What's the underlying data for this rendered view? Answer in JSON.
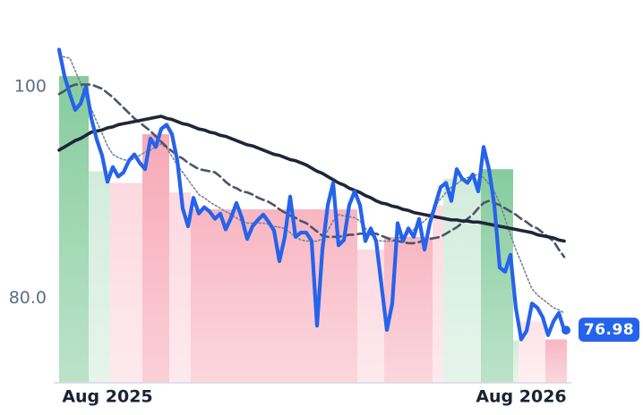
{
  "chart_data": {
    "type": "line",
    "categories": [
      null,
      null,
      null,
      null,
      null,
      null,
      null,
      null,
      null,
      "Aug 2025",
      null,
      null,
      null,
      null,
      null,
      null,
      null,
      null,
      null,
      null,
      null,
      null,
      null,
      null,
      null,
      null,
      null,
      null,
      null,
      null,
      null,
      null,
      null,
      null,
      null,
      null,
      null,
      null,
      null,
      null,
      null,
      null,
      null,
      null,
      null,
      null,
      null,
      null,
      null,
      null,
      null,
      null,
      null,
      null,
      null,
      null,
      null,
      null,
      null,
      null,
      null,
      null,
      null,
      null,
      null,
      null,
      null,
      null,
      null,
      null,
      null,
      null,
      null,
      null,
      null,
      null,
      null,
      null,
      null,
      null,
      null,
      null,
      null,
      null,
      null,
      null,
      "Aug 2026",
      null,
      null,
      null,
      null,
      null,
      null,
      null,
      null
    ],
    "ylim": [
      72,
      105
    ],
    "yticks": [
      100,
      {
        "value": 80,
        "label": "80.0"
      }
    ],
    "series": [
      {
        "color": "#2563eb",
        "style": "solid-thick",
        "values": [
          103.5,
          101.0,
          99.3,
          97.8,
          98.4,
          100.0,
          97.0,
          95.0,
          93.5,
          91.0,
          92.4,
          91.5,
          91.9,
          93.0,
          93.6,
          92.8,
          92.2,
          95.1,
          94.3,
          96.0,
          96.4,
          95.5,
          93.0,
          88.5,
          86.8,
          89.5,
          88.0,
          88.6,
          88.2,
          87.5,
          88.0,
          86.5,
          87.6,
          89.0,
          87.6,
          85.6,
          86.8,
          87.4,
          87.9,
          87.2,
          86.4,
          83.5,
          85.8,
          89.6,
          85.8,
          86.2,
          86.2,
          85.4,
          77.4,
          84.6,
          88.8,
          90.9,
          85.0,
          85.5,
          88.8,
          90.1,
          88.8,
          85.4,
          86.6,
          85.4,
          81.2,
          77.0,
          79.5,
          87.1,
          85.4,
          86.6,
          85.8,
          87.5,
          84.6,
          87.1,
          88.8,
          90.5,
          90.9,
          89.2,
          92.2,
          91.3,
          90.9,
          91.7,
          90.1,
          94.3,
          92.2,
          88.8,
          82.9,
          82.5,
          84.1,
          79.1,
          76.1,
          76.9,
          79.5,
          79.1,
          78.2,
          76.5,
          77.8,
          78.6,
          76.98
        ]
      },
      {
        "color": "#1e2638",
        "style": "solid",
        "values": [
          94.0,
          94.3,
          94.6,
          94.9,
          95.1,
          95.4,
          95.7,
          95.8,
          95.9,
          96.1,
          96.2,
          96.4,
          96.5,
          96.6,
          96.7,
          96.8,
          96.9,
          97.0,
          97.1,
          97.2,
          97.0,
          96.9,
          96.7,
          96.5,
          96.4,
          96.2,
          96.0,
          95.9,
          95.7,
          95.6,
          95.4,
          95.3,
          95.1,
          94.9,
          94.7,
          94.5,
          94.4,
          94.2,
          94.0,
          93.8,
          93.6,
          93.5,
          93.3,
          93.1,
          93.0,
          92.8,
          92.6,
          92.3,
          92.0,
          91.8,
          91.5,
          91.2,
          90.9,
          90.7,
          90.4,
          90.2,
          90.0,
          89.7,
          89.5,
          89.2,
          89.0,
          88.9,
          88.7,
          88.6,
          88.4,
          88.3,
          88.1,
          88.0,
          87.9,
          87.8,
          87.7,
          87.6,
          87.5,
          87.4,
          87.4,
          87.3,
          87.3,
          87.2,
          87.2,
          87.1,
          87.0,
          86.9,
          86.8,
          86.7,
          86.6,
          86.5,
          86.4,
          86.3,
          86.2,
          86.0,
          85.9,
          85.8,
          85.7,
          85.5,
          85.4
        ]
      },
      {
        "color": "#4b5567",
        "style": "dashed",
        "values": [
          99.3,
          99.6,
          100.0,
          100.2,
          100.2,
          100.2,
          100.2,
          100.0,
          99.8,
          99.4,
          99.0,
          98.5,
          98.0,
          97.5,
          97.0,
          96.6,
          96.2,
          95.8,
          95.3,
          94.8,
          94.3,
          93.9,
          93.5,
          93.2,
          92.8,
          92.5,
          92.2,
          92.1,
          92.0,
          91.9,
          91.5,
          91.0,
          90.6,
          90.4,
          90.1,
          90.0,
          89.8,
          89.5,
          89.3,
          89.1,
          88.8,
          88.4,
          88.1,
          87.8,
          87.6,
          87.3,
          87.1,
          86.7,
          86.3,
          85.9,
          85.8,
          85.8,
          85.8,
          85.9,
          86.0,
          86.0,
          86.1,
          86.1,
          86.1,
          86.1,
          85.9,
          85.7,
          85.5,
          85.4,
          85.3,
          85.2,
          85.2,
          85.3,
          85.5,
          85.6,
          85.7,
          85.8,
          86.1,
          86.4,
          86.7,
          87.1,
          87.5,
          87.9,
          88.5,
          89.0,
          89.2,
          89.0,
          88.8,
          88.5,
          88.2,
          87.9,
          87.5,
          87.2,
          86.8,
          86.6,
          86.2,
          85.8,
          85.4,
          84.6,
          83.9
        ]
      },
      {
        "color": "#7b8494",
        "style": "dotted",
        "values": [
          102.9,
          102.8,
          102.7,
          101.5,
          100.3,
          99.0,
          97.9,
          96.7,
          95.6,
          94.4,
          93.6,
          93.3,
          93.1,
          93.0,
          93.2,
          93.5,
          93.8,
          94.0,
          94.3,
          94.6,
          94.2,
          93.4,
          92.6,
          91.9,
          91.2,
          90.5,
          89.8,
          89.5,
          89.1,
          88.8,
          88.5,
          88.2,
          87.9,
          87.6,
          87.3,
          87.1,
          87.1,
          87.1,
          87.1,
          87.0,
          86.8,
          86.7,
          86.6,
          86.2,
          85.8,
          85.5,
          85.4,
          85.4,
          85.4,
          85.6,
          86.4,
          87.3,
          87.9,
          87.8,
          87.7,
          87.6,
          87.3,
          86.6,
          86.0,
          85.5,
          85.4,
          85.4,
          85.4,
          85.6,
          85.9,
          86.1,
          86.5,
          86.9,
          87.3,
          87.8,
          88.7,
          89.4,
          90.0,
          90.5,
          90.8,
          91.2,
          91.4,
          91.6,
          91.7,
          91.4,
          90.8,
          90.1,
          89.0,
          87.5,
          86.0,
          84.6,
          83.4,
          82.1,
          80.9,
          80.3,
          79.9,
          79.5,
          79.1,
          78.9,
          78.6
        ]
      }
    ],
    "bands": {
      "start": [
        0,
        6,
        10,
        16,
        21,
        25,
        56,
        61,
        70,
        72,
        79,
        85,
        86,
        91
      ],
      "end": [
        5,
        9,
        15,
        20,
        24,
        55,
        60,
        69,
        71,
        78,
        84,
        85,
        90,
        94
      ],
      "values": [
        101.0,
        92.0,
        90.9,
        95.5,
        90.0,
        88.4,
        84.6,
        85.8,
        88.8,
        91.3,
        92.2,
        76.0,
        77.8,
        76.1
      ],
      "colors": [
        "#86cc9e",
        "#d2ecdc",
        "#fcd9e0",
        "#f7a9b7",
        "#fcd9e0",
        "#f8b6c2",
        "#fcd9e0",
        "#f8b6c2",
        "#fcd9e0",
        "#d2ecdc",
        "#86cc9e",
        "#d2ecdc",
        "#fde3e8",
        "#f8b6c2"
      ]
    }
  }
}
